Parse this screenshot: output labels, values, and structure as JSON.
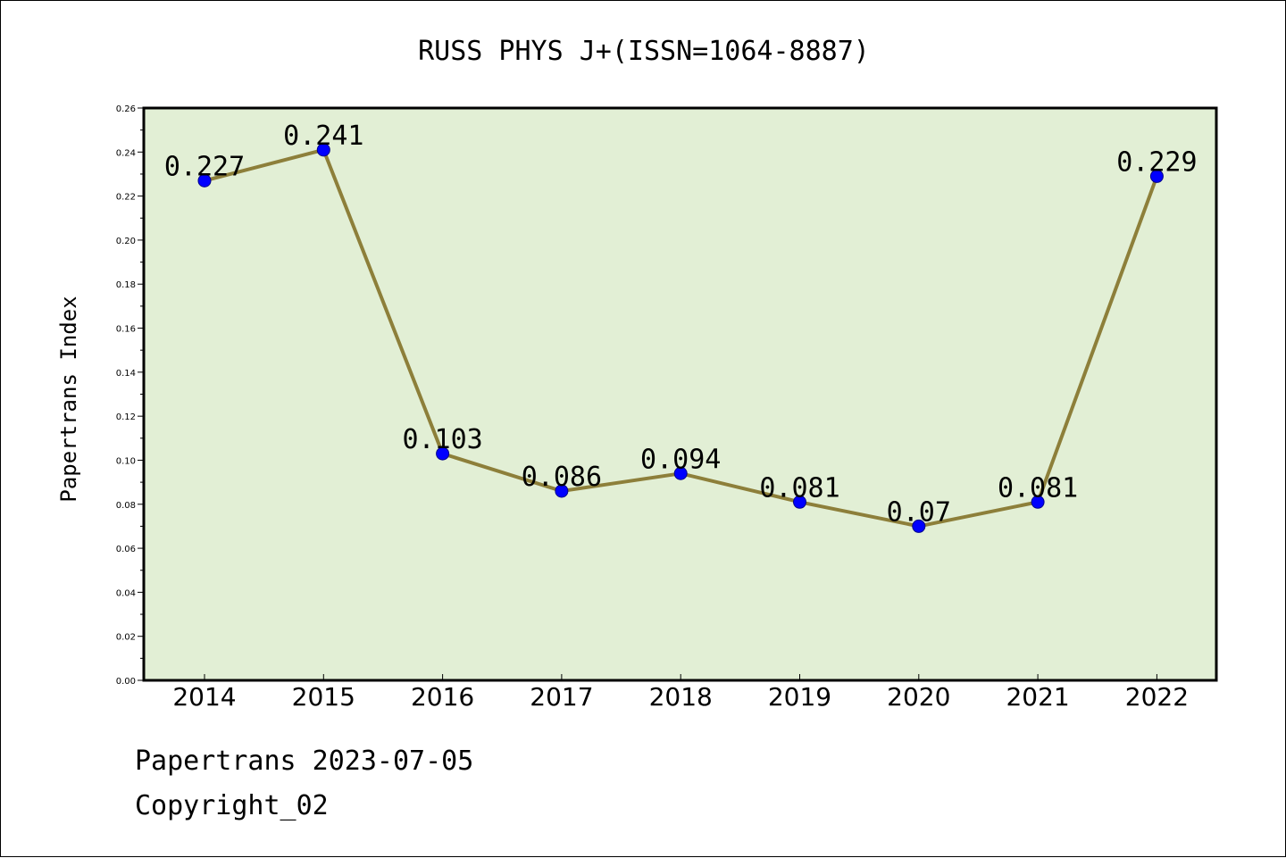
{
  "chart_data": {
    "type": "line",
    "title": "RUSS PHYS J+(ISSN=1064-8887)",
    "xlabel": "",
    "ylabel": "Papertrans Index",
    "categories": [
      "2014",
      "2015",
      "2016",
      "2017",
      "2018",
      "2019",
      "2020",
      "2021",
      "2022"
    ],
    "series": [
      {
        "values": [
          0.227,
          0.241,
          0.103,
          0.086,
          0.094,
          0.081,
          0.07,
          0.081,
          0.229
        ]
      }
    ],
    "data_labels": [
      "0.227",
      "0.241",
      "0.103",
      "0.086",
      "0.094",
      "0.081",
      "0.07",
      "0.081",
      "0.229"
    ],
    "ylim": [
      0,
      0.26
    ],
    "yticks": [
      "0.00",
      "0.02",
      "0.04",
      "0.06",
      "0.08",
      "0.10",
      "0.12",
      "0.14",
      "0.16",
      "0.18",
      "0.20",
      "0.22",
      "0.24",
      "0.26"
    ],
    "grid": false,
    "legend": "none",
    "colors": {
      "plot_background": "#e2efd5",
      "line": "#8d7f3a",
      "marker": "#0000ff"
    }
  },
  "footer": {
    "line1": "Papertrans 2023-07-05",
    "line2": "Copyright_02"
  }
}
